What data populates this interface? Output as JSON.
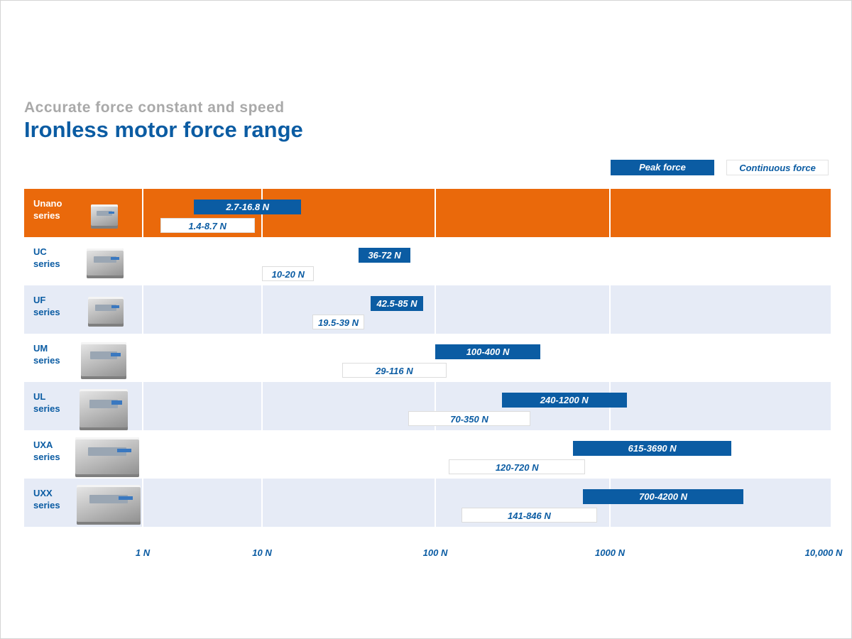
{
  "header": {
    "subtitle": "Accurate force constant and speed",
    "title": "Ironless motor force range"
  },
  "legend": {
    "peak_label": "Peak force",
    "continuous_label": "Continuous force"
  },
  "colors": {
    "accent_orange": "#ea690b",
    "brand_blue": "#0b5ca3",
    "band_light": "#e6ebf6"
  },
  "chart_data": {
    "type": "bar",
    "x_scale": "log",
    "xlim_label": [
      "1 N",
      "10,000 N"
    ],
    "tick_labels": [
      "1 N",
      "10 N",
      "100 N",
      "1000 N",
      "10,000 N"
    ],
    "categories": [
      "Unano series",
      "UC series",
      "UF series",
      "UM series",
      "UL series",
      "UXA series",
      "UXX series"
    ],
    "series": [
      {
        "name": "Peak force",
        "ranges": [
          [
            2.7,
            16.8
          ],
          [
            36,
            72
          ],
          [
            42.5,
            85
          ],
          [
            100,
            400
          ],
          [
            240,
            1200
          ],
          [
            615,
            3690
          ],
          [
            700,
            4200
          ]
        ],
        "labels": [
          "2.7-16.8 N",
          "36-72 N",
          "42.5-85 N",
          "100-400 N",
          "240-1200 N",
          "615-3690 N",
          "700-4200 N"
        ]
      },
      {
        "name": "Continuous force",
        "ranges": [
          [
            1.4,
            8.7
          ],
          [
            10,
            20
          ],
          [
            19.5,
            39
          ],
          [
            29,
            116
          ],
          [
            70,
            350
          ],
          [
            120,
            720
          ],
          [
            141,
            846
          ]
        ],
        "labels": [
          "1.4-8.7 N",
          "10-20 N",
          "19.5-39 N",
          "29-116 N",
          "70-350 N",
          "120-720 N",
          "141-846 N"
        ]
      }
    ],
    "legend_position": "top-right"
  },
  "rows": [
    {
      "label": "Unano\nseries",
      "icon": "unano-motor-image",
      "highlight": true
    },
    {
      "label": "UC\nseries",
      "icon": "uc-motor-image"
    },
    {
      "label": "UF\nseries",
      "icon": "uf-motor-image"
    },
    {
      "label": "UM\nseries",
      "icon": "um-motor-image"
    },
    {
      "label": "UL\nseries",
      "icon": "ul-motor-image"
    },
    {
      "label": "UXA\nseries",
      "icon": "uxa-motor-image"
    },
    {
      "label": "UXX\nseries",
      "icon": "uxx-motor-image"
    }
  ]
}
